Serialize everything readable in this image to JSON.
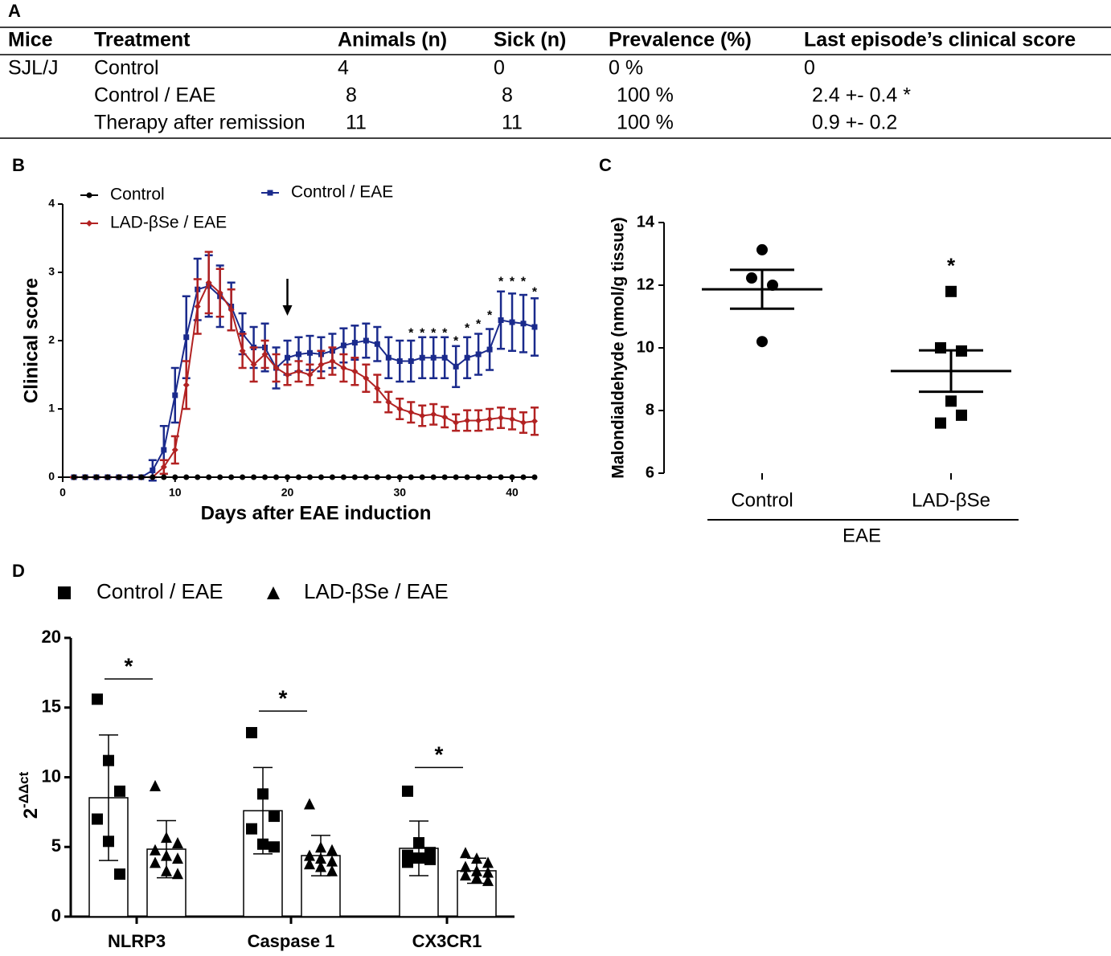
{
  "table": {
    "label": "A",
    "header": [
      "Mice",
      "Treatment",
      "Animals (n)",
      "Sick (n)",
      "Prevalence (%)",
      "Last episode’s clinical score"
    ],
    "rows": [
      [
        "SJL/J",
        "Control",
        "4",
        "0",
        "0 %",
        "0"
      ],
      [
        null,
        "Control / EAE",
        "8",
        "8",
        "100 %",
        "2.4 +- 0.4 *"
      ],
      [
        null,
        "Therapy after remission",
        "11",
        "11",
        "100 %",
        "0.9 +- 0.2"
      ]
    ]
  },
  "chart_data": [
    {
      "label": "B",
      "type": "line",
      "xlabel": "Days after EAE induction",
      "ylabel": "Clinical score",
      "x": [
        1,
        2,
        3,
        4,
        5,
        6,
        7,
        8,
        9,
        10,
        11,
        12,
        13,
        14,
        15,
        16,
        17,
        18,
        19,
        20,
        21,
        22,
        23,
        24,
        25,
        26,
        27,
        28,
        29,
        30,
        31,
        32,
        33,
        34,
        35,
        36,
        37,
        38,
        39,
        40,
        41,
        42
      ],
      "xlim": [
        0,
        42
      ],
      "xticks": [
        0,
        10,
        20,
        30,
        40
      ],
      "ylim": [
        0,
        4
      ],
      "yticks": [
        0,
        1,
        2,
        3,
        4
      ],
      "series": [
        {
          "name": "Control",
          "color": "#000000",
          "marker": "circle",
          "values": [
            0,
            0,
            0,
            0,
            0,
            0,
            0,
            0,
            0,
            0,
            0,
            0,
            0,
            0,
            0,
            0,
            0,
            0,
            0,
            0,
            0,
            0,
            0,
            0,
            0,
            0,
            0,
            0,
            0,
            0,
            0,
            0,
            0,
            0,
            0,
            0,
            0,
            0,
            0,
            0,
            0,
            0
          ]
        },
        {
          "name": "LAD-βSe / EAE",
          "color": "#b22222",
          "marker": "diamond",
          "values": [
            0,
            0,
            0,
            0,
            0,
            0,
            0,
            0,
            0.15,
            0.4,
            1.35,
            2.5,
            2.85,
            2.7,
            2.45,
            1.85,
            1.65,
            1.8,
            1.6,
            1.5,
            1.55,
            1.5,
            1.65,
            1.7,
            1.6,
            1.55,
            1.45,
            1.3,
            1.1,
            1.0,
            0.95,
            0.9,
            0.92,
            0.88,
            0.8,
            0.83,
            0.83,
            0.85,
            0.87,
            0.85,
            0.8,
            0.82
          ],
          "errors": [
            0,
            0,
            0,
            0,
            0,
            0,
            0,
            0,
            0.1,
            0.2,
            0.35,
            0.4,
            0.45,
            0.35,
            0.3,
            0.25,
            0.25,
            0.2,
            0.2,
            0.15,
            0.15,
            0.15,
            0.2,
            0.2,
            0.2,
            0.2,
            0.2,
            0.2,
            0.15,
            0.15,
            0.15,
            0.15,
            0.15,
            0.15,
            0.12,
            0.15,
            0.15,
            0.15,
            0.15,
            0.15,
            0.15,
            0.2
          ]
        },
        {
          "name": "Control / EAE",
          "color": "#1a2a8c",
          "marker": "square",
          "values": [
            0,
            0,
            0,
            0,
            0,
            0,
            0,
            0.1,
            0.4,
            1.2,
            2.05,
            2.75,
            2.8,
            2.65,
            2.5,
            2.1,
            1.9,
            1.9,
            1.6,
            1.75,
            1.8,
            1.82,
            1.8,
            1.85,
            1.93,
            1.97,
            2.0,
            1.95,
            1.75,
            1.7,
            1.7,
            1.75,
            1.75,
            1.75,
            1.62,
            1.75,
            1.8,
            1.87,
            2.3,
            2.27,
            2.25,
            2.2
          ],
          "errors": [
            0,
            0,
            0,
            0,
            0,
            0,
            0,
            0.15,
            0.35,
            0.4,
            0.6,
            0.45,
            0.45,
            0.45,
            0.35,
            0.3,
            0.3,
            0.35,
            0.3,
            0.25,
            0.25,
            0.25,
            0.25,
            0.25,
            0.25,
            0.25,
            0.25,
            0.25,
            0.3,
            0.3,
            0.3,
            0.3,
            0.3,
            0.3,
            0.3,
            0.3,
            0.3,
            0.3,
            0.42,
            0.42,
            0.42,
            0.42
          ]
        }
      ],
      "arrow_x": 20,
      "annotations": [
        {
          "x": 31,
          "y": 2.15,
          "text": "*"
        },
        {
          "x": 32,
          "y": 2.15,
          "text": "*"
        },
        {
          "x": 33,
          "y": 2.15,
          "text": "*"
        },
        {
          "x": 34,
          "y": 2.15,
          "text": "*"
        },
        {
          "x": 35,
          "y": 2.03,
          "text": "*"
        },
        {
          "x": 36,
          "y": 2.22,
          "text": "*"
        },
        {
          "x": 37,
          "y": 2.28,
          "text": "*"
        },
        {
          "x": 38,
          "y": 2.41,
          "text": "*"
        },
        {
          "x": 39,
          "y": 2.9,
          "text": "*"
        },
        {
          "x": 40,
          "y": 2.9,
          "text": "*"
        },
        {
          "x": 41,
          "y": 2.9,
          "text": "*"
        },
        {
          "x": 42,
          "y": 2.75,
          "text": "*"
        }
      ]
    },
    {
      "label": "C",
      "type": "scatter",
      "ylabel": "Malondialdehyde (nmol/g tissue)",
      "categories": [
        "Control",
        "LAD-βSe"
      ],
      "group_label": "EAE",
      "ylim": [
        6,
        14
      ],
      "yticks": [
        6,
        8,
        10,
        12,
        14
      ],
      "groups": [
        {
          "marker": "circle",
          "points": [
            13.13,
            12.23,
            12.0,
            10.2
          ],
          "mean": 11.87,
          "sem": 0.62
        },
        {
          "marker": "square",
          "points": [
            11.8,
            10.0,
            9.9,
            8.3,
            7.6,
            7.85
          ],
          "mean": 9.26,
          "sem": 0.66,
          "annotation": "*"
        }
      ]
    },
    {
      "label": "D",
      "type": "bar",
      "ylabel": "2",
      "ylabel_superscript": "-ΔΔct",
      "categories": [
        "NLRP3",
        "Caspase 1",
        "CX3CR1"
      ],
      "ylim": [
        0,
        20
      ],
      "yticks": [
        0,
        5,
        10,
        15,
        20
      ],
      "series": [
        {
          "name": "Control / EAE",
          "marker": "square",
          "values": [
            8.53,
            7.6,
            4.9
          ],
          "errors": [
            4.5,
            3.1,
            1.96
          ],
          "points": [
            [
              15.6,
              11.2,
              9.0,
              7.0,
              5.4,
              3.05
            ],
            [
              13.2,
              8.8,
              7.2,
              6.3,
              5.2,
              5.0
            ],
            [
              9.0,
              5.3,
              4.6,
              4.4,
              4.2,
              4.1,
              3.9
            ]
          ]
        },
        {
          "name": "LAD-βSe / EAE",
          "marker": "triangle",
          "values": [
            4.84,
            4.38,
            3.29
          ],
          "errors": [
            2.05,
            1.45,
            0.9
          ],
          "points": [
            [
              9.4,
              5.7,
              5.3,
              4.8,
              4.4,
              4.2,
              3.9,
              3.3,
              3.1
            ],
            [
              8.1,
              5.0,
              4.8,
              4.4,
              4.2,
              4.0,
              3.8,
              3.6,
              3.3
            ],
            [
              4.6,
              4.2,
              3.9,
              3.6,
              3.3,
              3.2,
              3.0,
              2.8,
              2.6
            ]
          ]
        }
      ],
      "significance": [
        {
          "y": 17.05,
          "text": "*"
        },
        {
          "y": 14.75,
          "text": "*"
        },
        {
          "y": 10.7,
          "text": "*"
        }
      ]
    }
  ]
}
